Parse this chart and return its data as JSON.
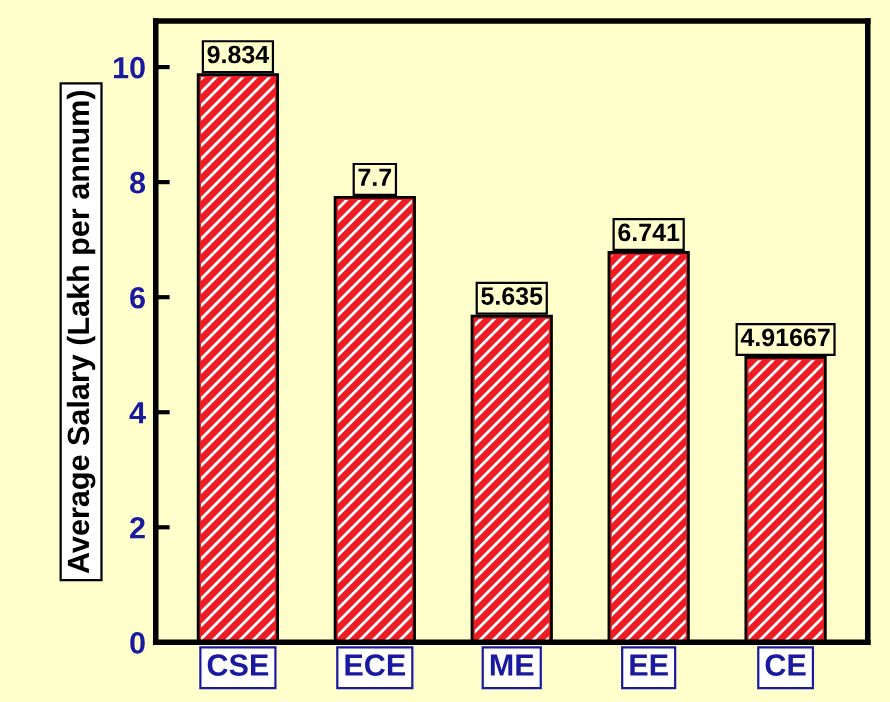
{
  "chart_data": {
    "type": "bar",
    "ylabel": "Average Salary (Lakh per annum)",
    "categories": [
      "CSE",
      "ECE",
      "ME",
      "EE",
      "CE"
    ],
    "values": [
      9.834,
      7.7,
      5.635,
      6.741,
      4.91667
    ],
    "color": "#ee1c24",
    "ylim": [
      0,
      10.8
    ],
    "yticks": [
      0,
      2,
      4,
      6,
      8,
      10
    ],
    "data_labels": true,
    "grid": false,
    "legend": false
  }
}
